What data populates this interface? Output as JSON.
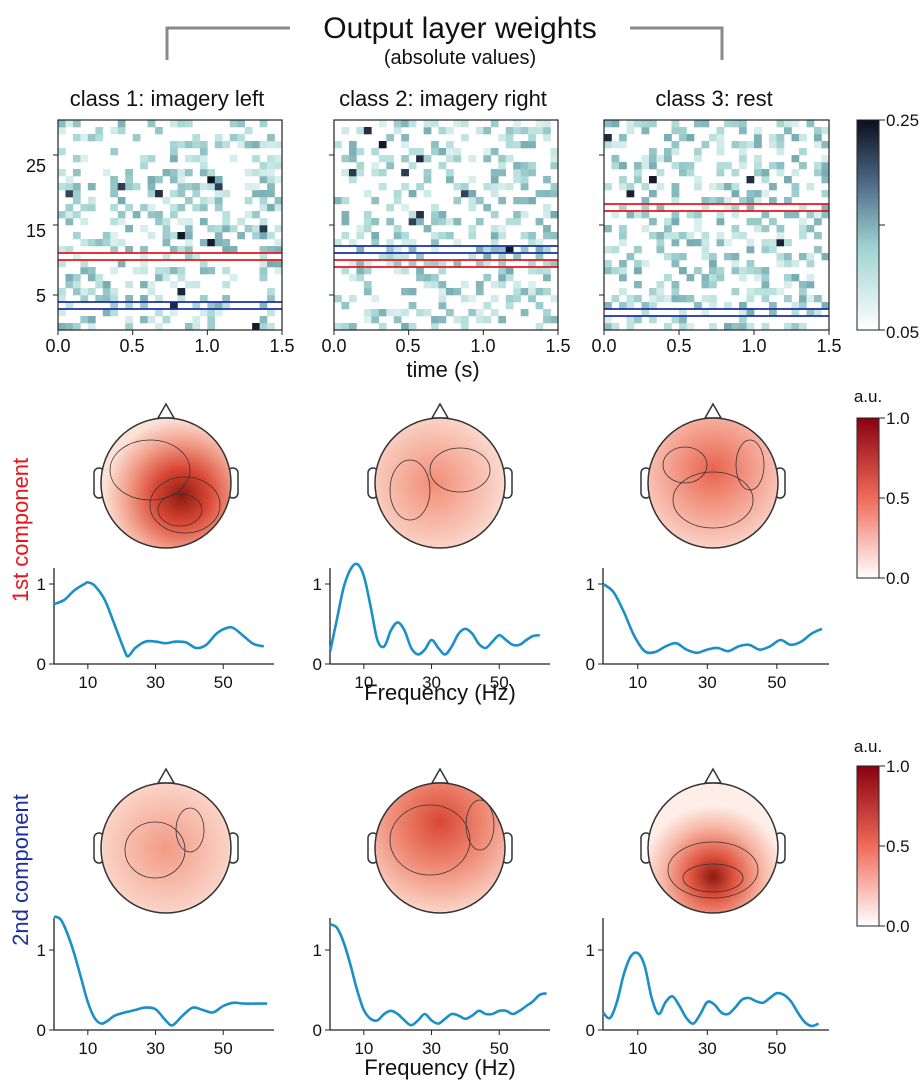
{
  "header": {
    "title": "Output layer weights",
    "subtitle": "(absolute values)"
  },
  "heatmaps": {
    "panels": [
      {
        "title": "class 1: imagery left"
      },
      {
        "title": "class 2: imagery right"
      },
      {
        "title": "class 3: rest"
      }
    ],
    "xlabel": "time (s)",
    "xticks": [
      "0.0",
      "0.5",
      "1.0",
      "1.5"
    ],
    "yticks": [
      "5",
      "15",
      "25"
    ],
    "colorbar": {
      "max_label": "0.25",
      "min_label": "0.05"
    }
  },
  "components": {
    "first_label": "1st component",
    "second_label": "2nd component",
    "first_color": "#e8141c",
    "second_color": "#1b2fa0",
    "colorbar": {
      "unit": "a.u.",
      "ticks": [
        "1.0",
        "0.5",
        "0.0"
      ]
    },
    "xlabel": "Frequency (Hz)",
    "xticks": [
      "10",
      "30",
      "50"
    ],
    "yticks": [
      "0",
      "1"
    ]
  },
  "chart_data": [
    {
      "type": "heatmap",
      "title": "class 1: imagery left",
      "xlabel": "time (s)",
      "ylabel": "",
      "xlim": [
        0,
        1.5
      ],
      "ylim": [
        0,
        30
      ],
      "colorbar_range": [
        0.05,
        0.25
      ],
      "highlight_rows_red": [
        10,
        11
      ],
      "highlight_rows_blue": [
        3,
        4
      ],
      "colormap": "white-teal-dark-navy"
    },
    {
      "type": "heatmap",
      "title": "class 2: imagery right",
      "xlabel": "time (s)",
      "xlim": [
        0,
        1.5
      ],
      "ylim": [
        0,
        30
      ],
      "colorbar_range": [
        0.05,
        0.25
      ],
      "highlight_rows_red": [
        9,
        10
      ],
      "highlight_rows_blue": [
        11,
        12
      ],
      "colormap": "white-teal-dark-navy"
    },
    {
      "type": "heatmap",
      "title": "class 3: rest",
      "xlabel": "time (s)",
      "xlim": [
        0,
        1.5
      ],
      "ylim": [
        0,
        30
      ],
      "colorbar_range": [
        0.05,
        0.25
      ],
      "highlight_rows_red": [
        17,
        18
      ],
      "highlight_rows_blue": [
        2,
        3
      ],
      "colormap": "white-teal-dark-navy"
    },
    {
      "type": "line",
      "series_color": "#1a8fc8",
      "xlabel": "Frequency (Hz)",
      "xlim": [
        0,
        65
      ],
      "ylim": [
        0,
        1.2
      ],
      "x": [
        0,
        3,
        6,
        9,
        10,
        12,
        15,
        18,
        21,
        22,
        24,
        27,
        30,
        33,
        36,
        39,
        42,
        45,
        48,
        51,
        53,
        56,
        59,
        62
      ],
      "y": [
        0.75,
        0.8,
        0.92,
        1.0,
        1.02,
        0.98,
        0.8,
        0.48,
        0.15,
        0.1,
        0.2,
        0.28,
        0.28,
        0.26,
        0.28,
        0.27,
        0.2,
        0.24,
        0.38,
        0.45,
        0.45,
        0.35,
        0.25,
        0.22
      ]
    },
    {
      "type": "line",
      "series_color": "#1a8fc8",
      "xlabel": "Frequency (Hz)",
      "xlim": [
        0,
        65
      ],
      "ylim": [
        0,
        1.2
      ],
      "x": [
        0,
        2,
        4,
        6,
        8,
        10,
        12,
        14,
        16,
        18,
        20,
        22,
        24,
        26,
        28,
        30,
        32,
        34,
        36,
        38,
        40,
        42,
        44,
        46,
        48,
        50,
        52,
        54,
        56,
        58,
        60,
        62
      ],
      "y": [
        0.15,
        0.55,
        0.95,
        1.18,
        1.25,
        1.1,
        0.72,
        0.3,
        0.22,
        0.42,
        0.52,
        0.42,
        0.2,
        0.12,
        0.18,
        0.3,
        0.2,
        0.12,
        0.22,
        0.38,
        0.44,
        0.38,
        0.25,
        0.2,
        0.28,
        0.36,
        0.3,
        0.24,
        0.24,
        0.3,
        0.35,
        0.36
      ]
    },
    {
      "type": "line",
      "series_color": "#1a8fc8",
      "xlabel": "Frequency (Hz)",
      "xlim": [
        0,
        65
      ],
      "ylim": [
        0,
        1.2
      ],
      "x": [
        0,
        3,
        6,
        9,
        12,
        15,
        18,
        21,
        24,
        27,
        30,
        33,
        36,
        39,
        42,
        45,
        48,
        51,
        54,
        57,
        60,
        63
      ],
      "y": [
        1.0,
        0.9,
        0.65,
        0.35,
        0.16,
        0.15,
        0.22,
        0.26,
        0.18,
        0.14,
        0.18,
        0.2,
        0.16,
        0.22,
        0.24,
        0.18,
        0.22,
        0.3,
        0.24,
        0.28,
        0.38,
        0.44
      ]
    },
    {
      "type": "line",
      "series_color": "#1a8fc8",
      "xlabel": "Frequency (Hz)",
      "xlim": [
        0,
        65
      ],
      "ylim": [
        0,
        1.4
      ],
      "x": [
        0,
        2,
        4,
        6,
        8,
        10,
        12,
        14,
        16,
        18,
        21,
        24,
        27,
        30,
        33,
        35,
        38,
        41,
        44,
        47,
        50,
        53,
        56,
        60,
        63
      ],
      "y": [
        1.42,
        1.38,
        1.2,
        0.95,
        0.65,
        0.35,
        0.15,
        0.08,
        0.12,
        0.18,
        0.22,
        0.25,
        0.28,
        0.26,
        0.12,
        0.06,
        0.18,
        0.28,
        0.25,
        0.22,
        0.3,
        0.34,
        0.33,
        0.33,
        0.33
      ]
    },
    {
      "type": "line",
      "series_color": "#1a8fc8",
      "xlabel": "Frequency (Hz)",
      "xlim": [
        0,
        65
      ],
      "ylim": [
        0,
        1.4
      ],
      "x": [
        0,
        2,
        4,
        6,
        8,
        10,
        12,
        14,
        16,
        18,
        20,
        22,
        24,
        26,
        28,
        30,
        32,
        34,
        36,
        38,
        40,
        42,
        44,
        46,
        48,
        50,
        52,
        54,
        56,
        58,
        60,
        62,
        64
      ],
      "y": [
        1.32,
        1.28,
        1.1,
        0.82,
        0.5,
        0.25,
        0.14,
        0.12,
        0.2,
        0.24,
        0.2,
        0.12,
        0.06,
        0.12,
        0.2,
        0.12,
        0.08,
        0.14,
        0.2,
        0.18,
        0.14,
        0.18,
        0.24,
        0.2,
        0.2,
        0.24,
        0.24,
        0.2,
        0.24,
        0.3,
        0.36,
        0.44,
        0.46
      ]
    },
    {
      "type": "line",
      "series_color": "#1a8fc8",
      "xlabel": "Frequency (Hz)",
      "xlim": [
        0,
        65
      ],
      "ylim": [
        0,
        1.4
      ],
      "x": [
        0,
        2,
        4,
        6,
        8,
        10,
        12,
        14,
        16,
        18,
        20,
        22,
        24,
        26,
        28,
        30,
        32,
        34,
        36,
        38,
        40,
        42,
        44,
        46,
        48,
        50,
        52,
        54,
        56,
        58,
        60,
        62
      ],
      "y": [
        0.22,
        0.15,
        0.35,
        0.7,
        0.92,
        0.96,
        0.8,
        0.4,
        0.2,
        0.35,
        0.42,
        0.3,
        0.15,
        0.08,
        0.2,
        0.35,
        0.32,
        0.22,
        0.2,
        0.28,
        0.38,
        0.4,
        0.36,
        0.34,
        0.4,
        0.46,
        0.44,
        0.36,
        0.22,
        0.1,
        0.05,
        0.08
      ]
    }
  ]
}
